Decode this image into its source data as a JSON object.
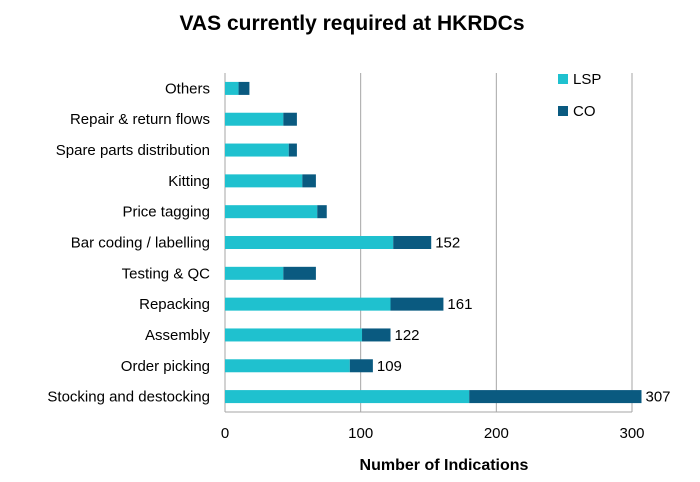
{
  "chart_data": {
    "type": "bar",
    "orientation": "horizontal",
    "stacked": true,
    "title": "VAS currently required at HKRDCs",
    "xlabel": "Number of Indications",
    "ylabel": "",
    "xlim": [
      0,
      300
    ],
    "xticks": [
      0,
      100,
      200,
      300
    ],
    "grid": true,
    "legend_position": "top-right",
    "categories": [
      "Others",
      "Repair & return flows",
      "Spare parts distribution",
      "Kitting",
      "Price tagging",
      "Bar coding / labelling",
      "Testing & QC",
      "Repacking",
      "Assembly",
      "Order picking",
      "Stocking and destocking"
    ],
    "series": [
      {
        "name": "LSP",
        "color": "#1fc1cf",
        "values": [
          10,
          43,
          47,
          57,
          68,
          124,
          43,
          122,
          101,
          92,
          180
        ]
      },
      {
        "name": "CO",
        "color": "#0a5a80",
        "values": [
          8,
          10,
          6,
          10,
          7,
          28,
          24,
          39,
          21,
          17,
          127
        ]
      }
    ],
    "data_labels": [
      "",
      "",
      "",
      "",
      "",
      "152",
      "",
      "161",
      "122",
      "109",
      "307"
    ]
  }
}
